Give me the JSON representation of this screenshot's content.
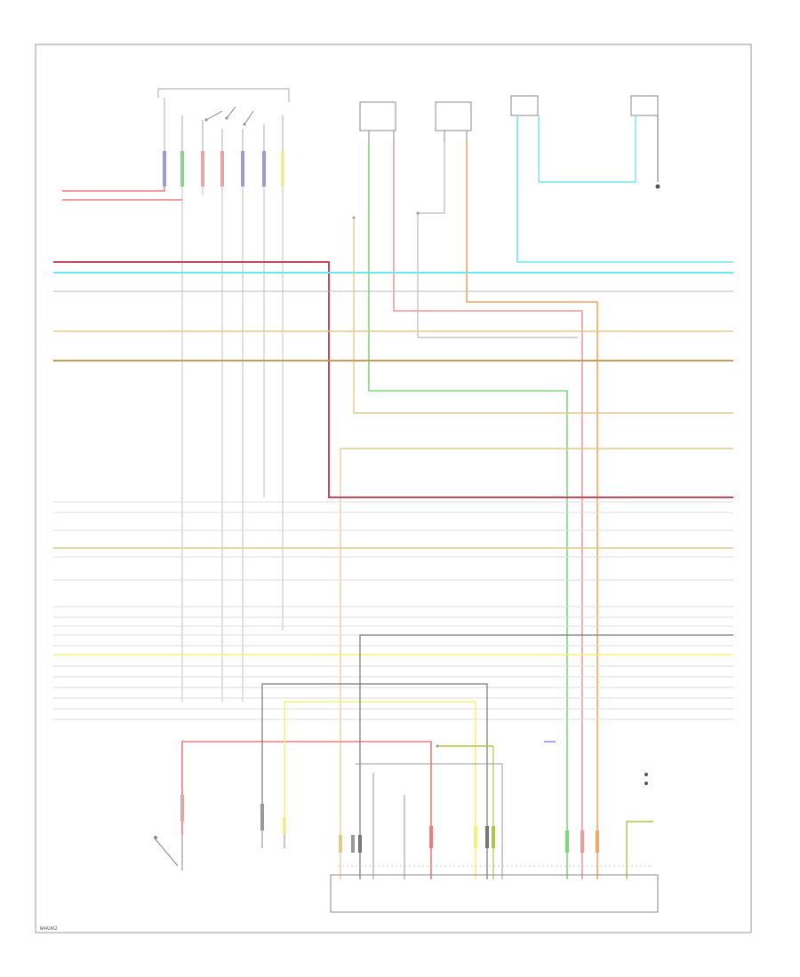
{
  "diagram_id": "W4A9R2"
}
